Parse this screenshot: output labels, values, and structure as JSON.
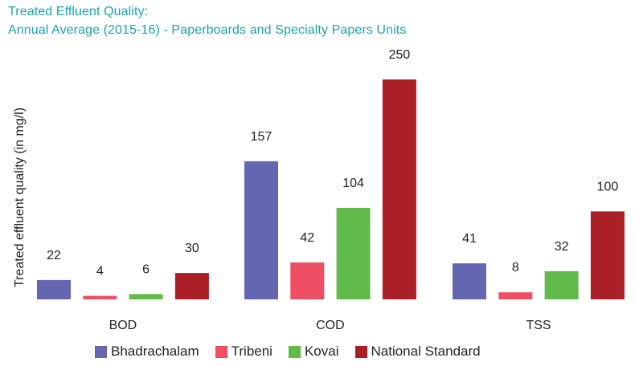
{
  "chart_data": {
    "type": "bar",
    "title": "Treated Effluent Quality:",
    "subtitle": "Annual Average (2015-16) - Paperboards and Specialty Papers Units",
    "ylabel": "Treated effluent quality (in mg/l)",
    "xlabel": "",
    "categories": [
      "BOD",
      "COD",
      "TSS"
    ],
    "ylim": [
      0,
      250
    ],
    "grid": false,
    "legend_position": "bottom",
    "series": [
      {
        "name": "Bhadrachalam",
        "color": "#6566b0",
        "values": [
          22,
          157,
          41
        ]
      },
      {
        "name": "Tribeni",
        "color": "#ef4f64",
        "values": [
          4,
          42,
          8
        ]
      },
      {
        "name": "Kovai",
        "color": "#61bb4a",
        "values": [
          6,
          104,
          32
        ]
      },
      {
        "name": "National Standard",
        "color": "#ab1f26",
        "values": [
          30,
          250,
          100
        ]
      }
    ]
  }
}
